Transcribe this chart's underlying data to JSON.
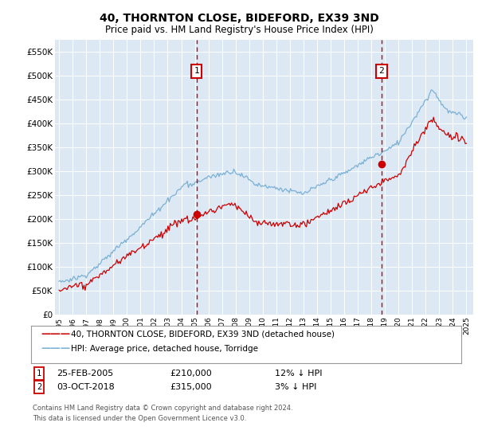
{
  "title": "40, THORNTON CLOSE, BIDEFORD, EX39 3ND",
  "subtitle": "Price paid vs. HM Land Registry's House Price Index (HPI)",
  "ylim": [
    0,
    575000
  ],
  "yticks": [
    0,
    50000,
    100000,
    150000,
    200000,
    250000,
    300000,
    350000,
    400000,
    450000,
    500000,
    550000
  ],
  "ytick_labels": [
    "£0",
    "£50K",
    "£100K",
    "£150K",
    "£200K",
    "£250K",
    "£300K",
    "£350K",
    "£400K",
    "£450K",
    "£500K",
    "£550K"
  ],
  "background_color": "#dce9f5",
  "grid_color": "#c8d8e8",
  "sale1_date": 2005.12,
  "sale1_price": 210000,
  "sale1_label": "1",
  "sale2_date": 2018.75,
  "sale2_price": 315000,
  "sale2_label": "2",
  "legend_line1": "40, THORNTON CLOSE, BIDEFORD, EX39 3ND (detached house)",
  "legend_line2": "HPI: Average price, detached house, Torridge",
  "table_row1": [
    "1",
    "25-FEB-2005",
    "£210,000",
    "12% ↓ HPI"
  ],
  "table_row2": [
    "2",
    "03-OCT-2018",
    "£315,000",
    "3% ↓ HPI"
  ],
  "footer": "Contains HM Land Registry data © Crown copyright and database right 2024.\nThis data is licensed under the Open Government Licence v3.0.",
  "hpi_color": "#7ab0d4",
  "sale_color": "#cc0000",
  "vline_color": "#cc0000",
  "xlim_left": 1994.7,
  "xlim_right": 2025.5
}
